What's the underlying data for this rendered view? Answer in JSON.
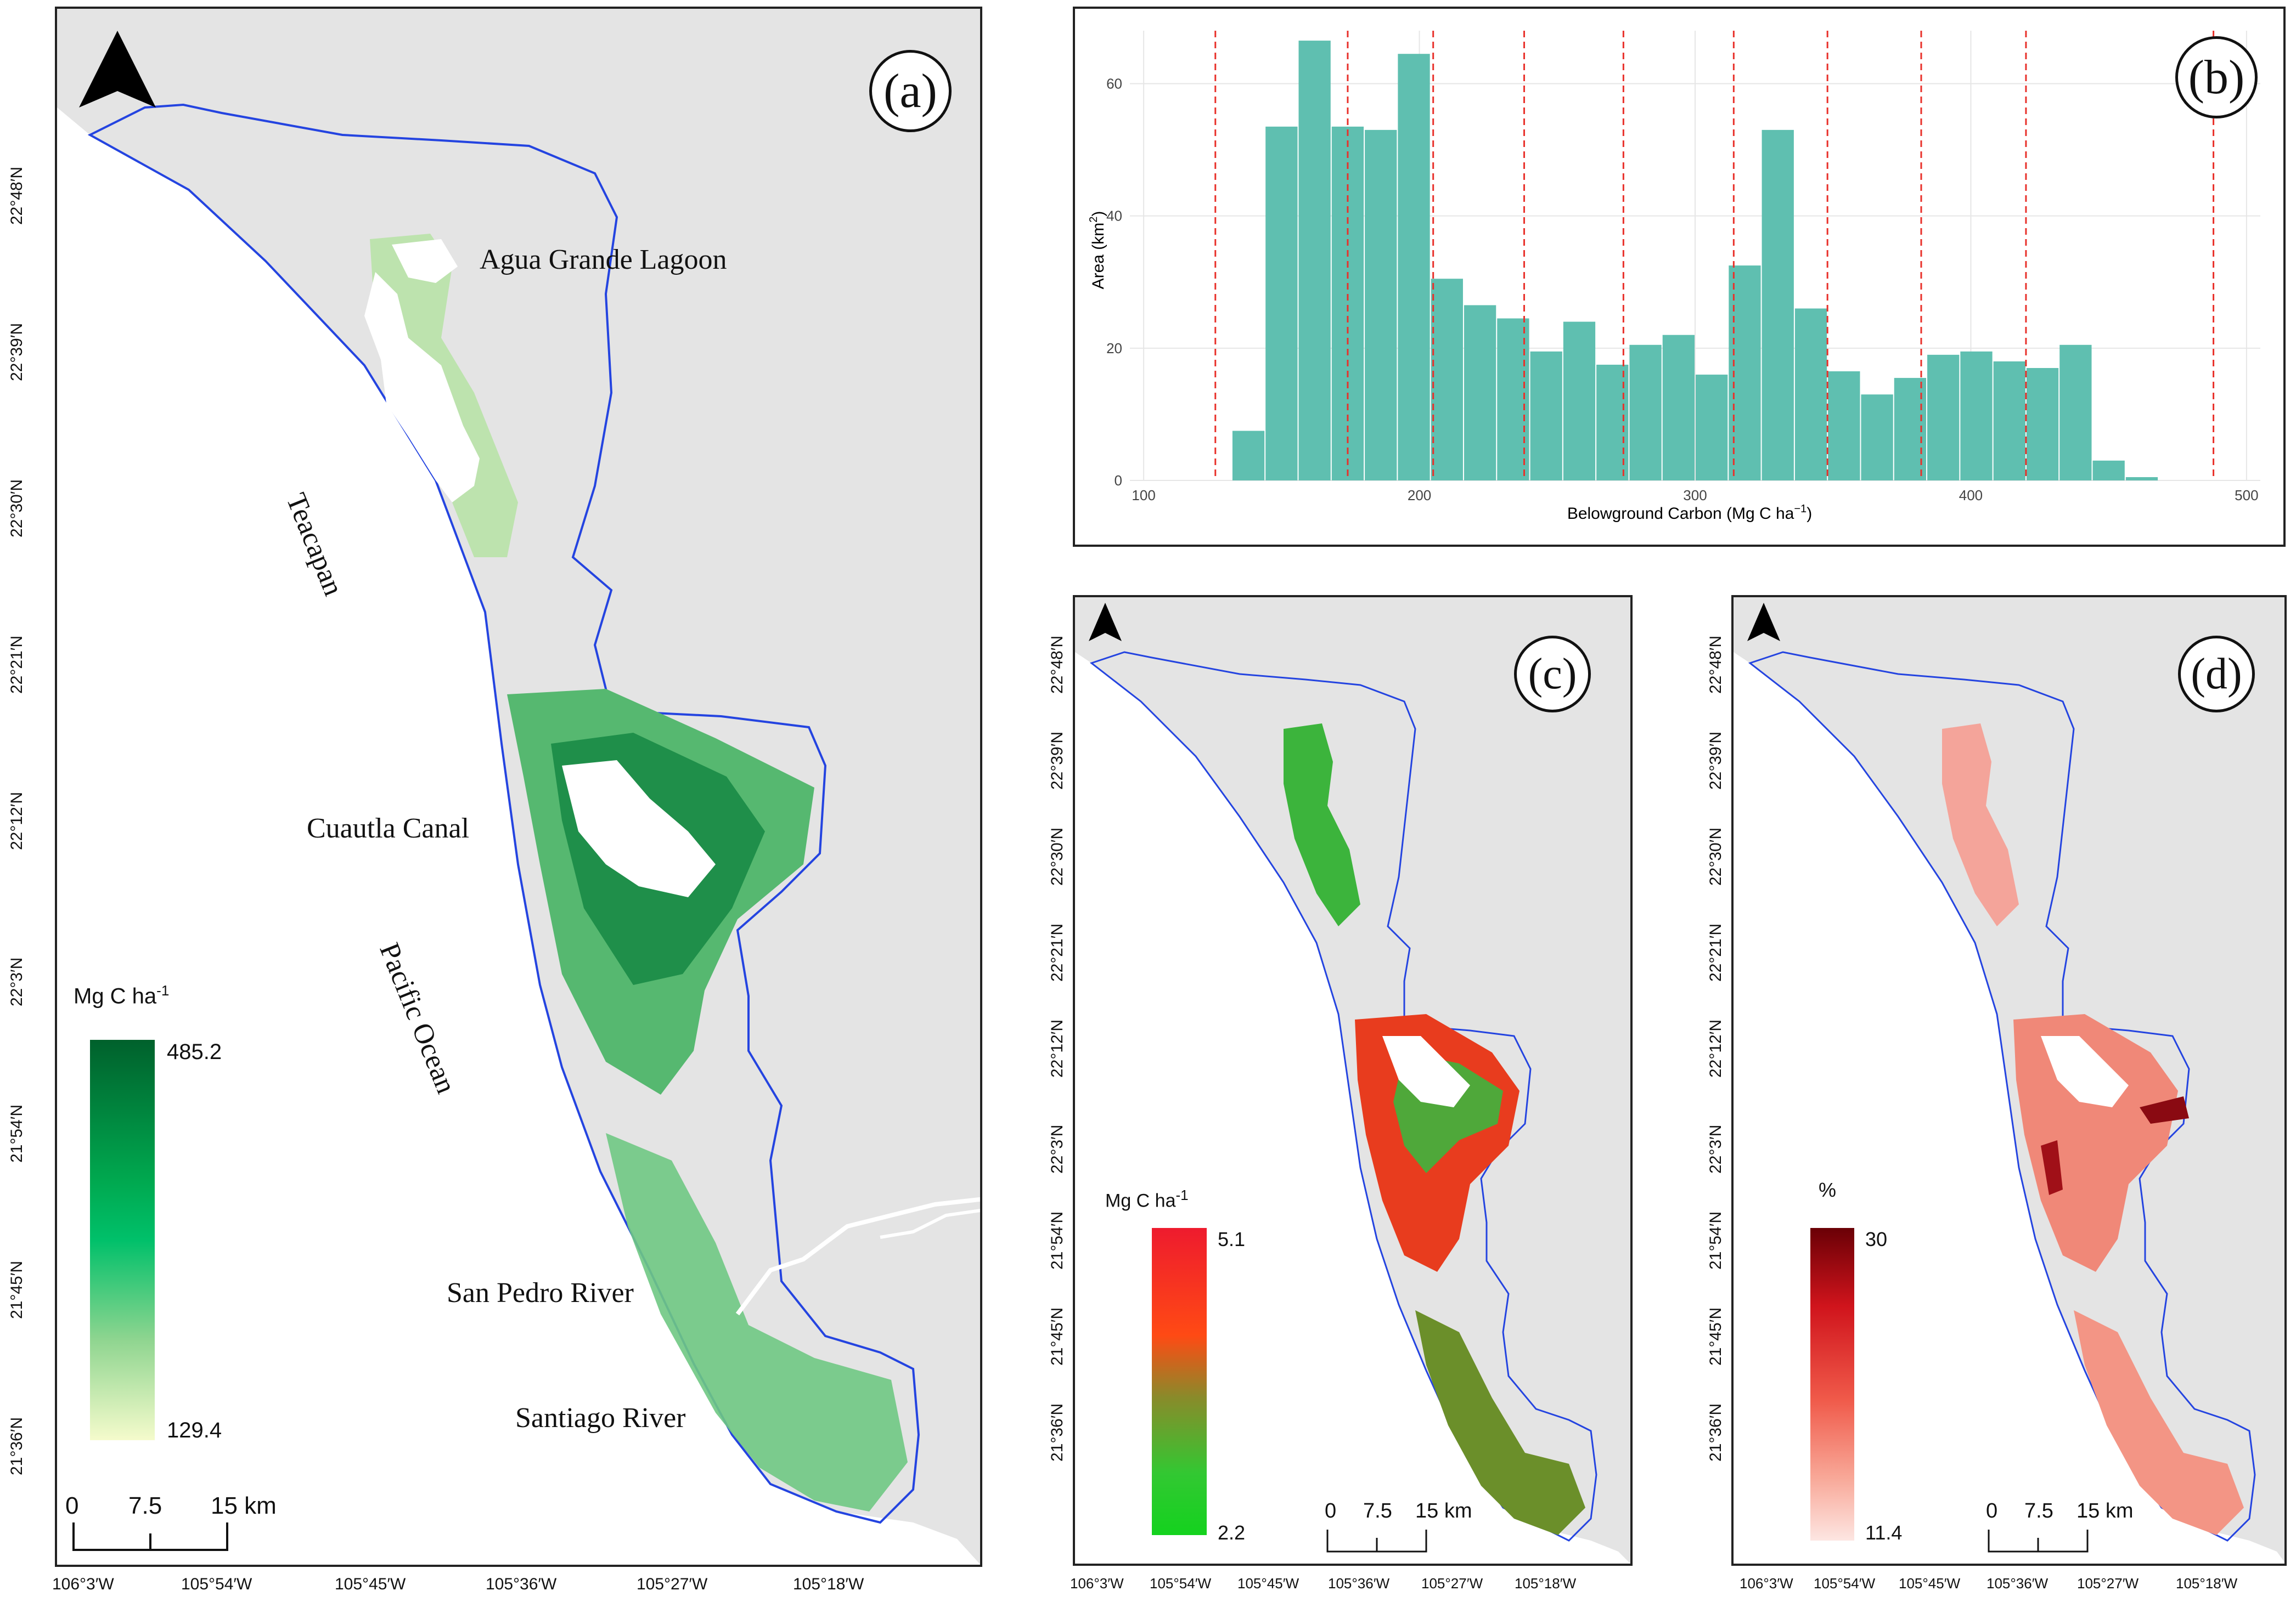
{
  "panel_a": {
    "label": "(a)",
    "places": [
      "Agua Grande Lagoon",
      "Teacapan",
      "Cuautla Canal",
      "Pacific Ocean",
      "San Pedro River",
      "Santiago River"
    ],
    "legend": {
      "unit": "Mg C ha",
      "unit_sup": "-1",
      "max": "485.2",
      "min": "129.4"
    },
    "scale": [
      "0",
      "7.5",
      "15 km"
    ],
    "lat_ticks": [
      "22°48′N",
      "22°39′N",
      "22°30′N",
      "22°21′N",
      "22°12′N",
      "22°3′N",
      "21°54′N",
      "21°45′N",
      "21°36′N"
    ],
    "lon_ticks": [
      "106°3′W",
      "105°54′W",
      "105°45′W",
      "105°36′W",
      "105°27′W",
      "105°18′W"
    ]
  },
  "panel_b": {
    "label": "(b)",
    "chart_data": {
      "type": "bar",
      "xlabel": "Belowground Carbon (Mg C ha",
      "xlabel_sup": "−1",
      "xlabel_end": ")",
      "ylabel": "Area (km",
      "ylabel_sup": "2",
      "ylabel_end": ")",
      "xlim": [
        95,
        505
      ],
      "ylim": [
        0,
        68
      ],
      "x_ticks": [
        "100",
        "200",
        "300",
        "400",
        "500"
      ],
      "y_ticks": [
        "0",
        "20",
        "40",
        "60"
      ],
      "bin_width": 12,
      "bin_starts": [
        132,
        144,
        156,
        168,
        180,
        192,
        204,
        216,
        228,
        240,
        252,
        264,
        276,
        288,
        300,
        312,
        324,
        336,
        348,
        360,
        372,
        384,
        396,
        408,
        420,
        432,
        444,
        456,
        468
      ],
      "values": [
        7.5,
        53.5,
        66.5,
        53.5,
        53,
        64.5,
        30.5,
        26.5,
        24.5,
        19.5,
        24,
        17.5,
        20.5,
        22,
        16,
        32.5,
        53,
        26,
        16.5,
        13,
        15.5,
        19,
        19.5,
        18,
        17,
        20.5,
        3,
        0.5,
        0
      ],
      "quantile_lines": [
        126,
        174,
        205,
        238,
        274,
        314,
        348,
        382,
        420,
        488
      ],
      "colors": {
        "bars": "#5fbfb0",
        "lines": "#e8312b"
      }
    }
  },
  "panel_c": {
    "label": "(c)",
    "legend": {
      "unit": "Mg C ha",
      "unit_sup": "-1",
      "max": "5.1",
      "min": "2.2"
    },
    "scale": [
      "0",
      "7.5",
      "15 km"
    ],
    "lat_ticks": [
      "22°48′N",
      "22°39′N",
      "22°30′N",
      "22°21′N",
      "22°12′N",
      "22°3′N",
      "21°54′N",
      "21°45′N",
      "21°36′N"
    ],
    "lon_ticks": [
      "106°3′W",
      "105°54′W",
      "105°45′W",
      "105°36′W",
      "105°27′W",
      "105°18′W"
    ]
  },
  "panel_d": {
    "label": "(d)",
    "legend": {
      "unit": "%",
      "max": "30",
      "min": "11.4"
    },
    "scale": [
      "0",
      "7.5",
      "15 km"
    ],
    "lat_ticks": [
      "22°48′N",
      "22°39′N",
      "22°30′N",
      "22°21′N",
      "22°12′N",
      "22°3′N",
      "21°54′N",
      "21°45′N",
      "21°36′N"
    ],
    "lon_ticks": [
      "106°3′W",
      "105°54′W",
      "105°45′W",
      "105°36′W",
      "105°27′W",
      "105°18′W"
    ]
  }
}
